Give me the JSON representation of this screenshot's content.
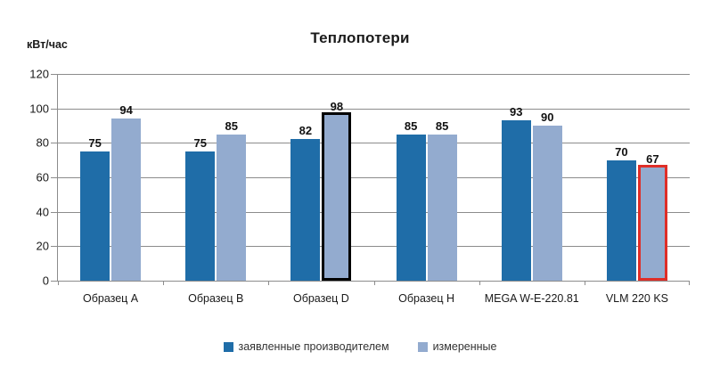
{
  "chart_data": {
    "type": "bar",
    "title": "Теплопотери",
    "ylabel": "кВт/час",
    "xlabel": "",
    "ylim": [
      0,
      120
    ],
    "yticks": [
      0,
      20,
      40,
      60,
      80,
      100,
      120
    ],
    "grid": true,
    "legend_position": "bottom",
    "categories": [
      "Образец A",
      "Образец B",
      "Образец D",
      "Образец H",
      "MEGA W-E-220.81",
      "VLM 220 KS"
    ],
    "series": [
      {
        "name": "заявленные производителем",
        "color": "#1f6da8",
        "values": [
          75,
          75,
          82,
          85,
          93,
          70
        ]
      },
      {
        "name": "измеренные",
        "color": "#93abcf",
        "values": [
          94,
          85,
          98,
          85,
          90,
          67
        ]
      }
    ],
    "highlights": [
      {
        "category_index": 2,
        "series_index": 1,
        "outline_color": "#000000",
        "outline_width": 3
      },
      {
        "category_index": 5,
        "series_index": 1,
        "outline_color": "#df2e28",
        "outline_width": 3
      }
    ],
    "colors": {
      "grid": "#8c8c8c",
      "axis": "#8c8c8c",
      "title_text": "#1a1a1a",
      "label_text": "#1a1a1a",
      "value_text": "#111111",
      "background": "#ffffff"
    }
  }
}
